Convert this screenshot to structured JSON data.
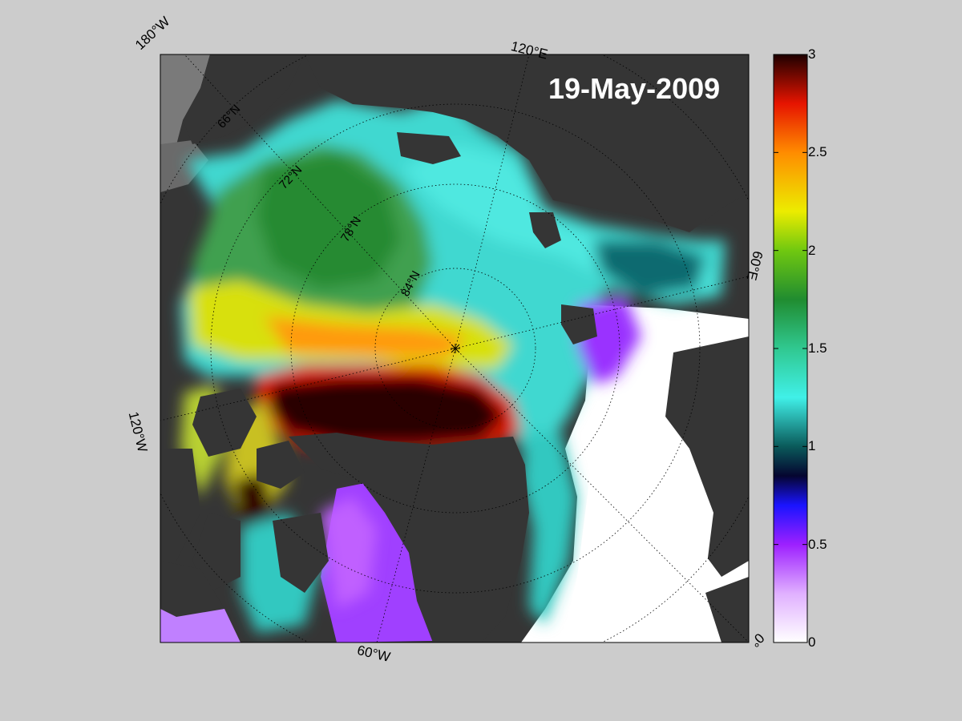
{
  "map": {
    "date": "19-May-2009",
    "projection": "polar-stereographic",
    "pole_marker": "pole-star-icon",
    "graticule_lat": [
      "66°N",
      "72°N",
      "78°N",
      "84°N"
    ],
    "edge_lon_labels": {
      "top_left": "180°W",
      "top": "120°E",
      "right": "60°E",
      "bottom_right": "0°",
      "bottom": "60°W",
      "left": "120°W"
    },
    "colors": {
      "land": "#353535",
      "open_water": "#ffffff",
      "outside_grid": "#7a7a7a",
      "figure_bg": "#cccccc"
    }
  },
  "colorbar": {
    "min": 0,
    "max": 3,
    "ticks": [
      "0",
      "0.5",
      "1",
      "1.5",
      "2",
      "2.5",
      "3"
    ],
    "colormap": [
      {
        "value": 0.0,
        "color": "#ffffff"
      },
      {
        "value": 0.25,
        "color": "#e0b0ff"
      },
      {
        "value": 0.5,
        "color": "#9d20ff"
      },
      {
        "value": 0.7,
        "color": "#1a14ff"
      },
      {
        "value": 0.85,
        "color": "#050530"
      },
      {
        "value": 1.0,
        "color": "#0a5a5a"
      },
      {
        "value": 1.25,
        "color": "#40f0e8"
      },
      {
        "value": 1.5,
        "color": "#30c890"
      },
      {
        "value": 1.75,
        "color": "#208c30"
      },
      {
        "value": 2.0,
        "color": "#70c810"
      },
      {
        "value": 2.2,
        "color": "#ecec00"
      },
      {
        "value": 2.5,
        "color": "#ff8c00"
      },
      {
        "value": 2.75,
        "color": "#e61400"
      },
      {
        "value": 3.0,
        "color": "#1e0000"
      }
    ]
  }
}
